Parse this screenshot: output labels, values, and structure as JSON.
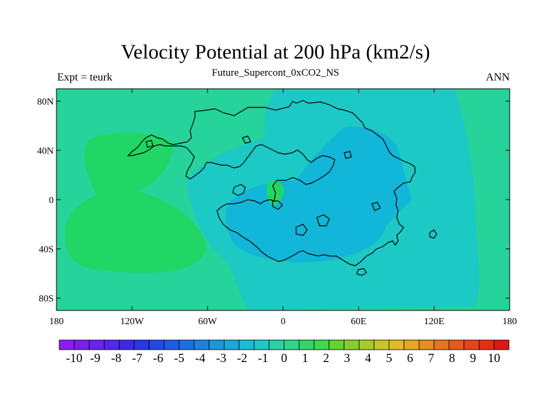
{
  "title": "Velocity Potential at 200 hPa (km2/s)",
  "subtitle": "Future_Supercont_0xCO2_NS",
  "left_string": "Expt = teurk",
  "right_string": "ANN",
  "map": {
    "lon_range": [
      -180,
      180
    ],
    "lat_range": [
      -90,
      90
    ],
    "x_ticks": [
      {
        "lon": -180,
        "label": "180"
      },
      {
        "lon": -120,
        "label": "120W"
      },
      {
        "lon": -60,
        "label": "60W"
      },
      {
        "lon": 0,
        "label": "0"
      },
      {
        "lon": 60,
        "label": "60E"
      },
      {
        "lon": 120,
        "label": "120E"
      },
      {
        "lon": 180,
        "label": "180"
      }
    ],
    "y_ticks": [
      {
        "lat": 80,
        "label": "80N"
      },
      {
        "lat": 40,
        "label": "40N"
      },
      {
        "lat": 0,
        "label": "0"
      },
      {
        "lat": -40,
        "label": "40S"
      },
      {
        "lat": -80,
        "label": "80S"
      }
    ],
    "field_colors": {
      "background": "#26d39a",
      "positive": "#21d665",
      "negative_1": "#1dc9c4",
      "negative_2": "#11b6d9",
      "coastline": "#000000"
    }
  },
  "colorbar": {
    "labels": [
      "-10",
      "-9",
      "-8",
      "-7",
      "-6",
      "-5",
      "-4",
      "-3",
      "-2",
      "-1",
      "0",
      "1",
      "2",
      "3",
      "4",
      "5",
      "6",
      "7",
      "8",
      "9",
      "10"
    ],
    "colors": [
      "#8e1bf2",
      "#7b1ff0",
      "#6823ef",
      "#5427ee",
      "#3d28e6",
      "#2a36e8",
      "#2049e8",
      "#1d5ce6",
      "#1b6fe4",
      "#1a83e0",
      "#1897dd",
      "#16abdb",
      "#15bfd6",
      "#1dc9c4",
      "#26d3a6",
      "#2ad88a",
      "#2fd86b",
      "#3ad94f",
      "#60d52a",
      "#84d028",
      "#a5cd26",
      "#c7c624",
      "#e0bb22",
      "#e8a620",
      "#e88e1e",
      "#e8741c",
      "#e85a1a",
      "#e84318",
      "#e82d16",
      "#e01614"
    ]
  }
}
